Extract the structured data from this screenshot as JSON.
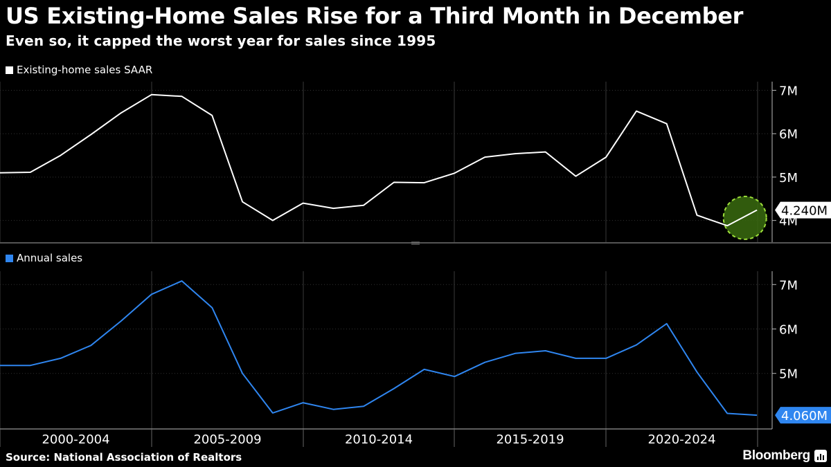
{
  "title": "US Existing-Home Sales Rise for a Third Month in December",
  "subtitle": "Even so, it capped the worst year for sales since 1995",
  "source": "Source: National Association of Realtors",
  "brand": "Bloomberg",
  "brand_icon": "bloomberg-chart-icon",
  "colors": {
    "background": "#000000",
    "series_top": "#ffffff",
    "series_bottom": "#2f86f0",
    "highlight": "#7cba2b",
    "grid": "#3a3a3a"
  },
  "chart_data": [
    {
      "type": "line",
      "legend": "Existing-home sales SAAR",
      "series": [
        {
          "name": "Existing-home sales SAAR",
          "x": [
            1999,
            2000,
            2001,
            2002,
            2003,
            2004,
            2005,
            2006,
            2007,
            2008,
            2009,
            2010,
            2011,
            2012,
            2013,
            2014,
            2015,
            2016,
            2017,
            2018,
            2019,
            2020,
            2021,
            2022,
            2023,
            2023.98
          ],
          "values": [
            5.1,
            5.11,
            5.5,
            5.98,
            6.48,
            6.9,
            6.86,
            6.42,
            4.43,
            4.0,
            4.4,
            4.28,
            4.35,
            4.88,
            4.87,
            5.09,
            5.46,
            5.54,
            5.58,
            5.02,
            5.46,
            6.52,
            6.23,
            4.12,
            3.88,
            4.24
          ]
        }
      ],
      "last_label": "4.240M",
      "highlight": "Dec 2023",
      "yticks": [
        "4M",
        "5M",
        "6M",
        "7M"
      ],
      "yticks_values": [
        4,
        5,
        6,
        7
      ],
      "ylim": [
        3.5,
        7.2
      ],
      "xlim": [
        1999,
        2024
      ]
    },
    {
      "type": "line",
      "legend": "Annual sales",
      "series": [
        {
          "name": "Annual sales",
          "x": [
            1999,
            2000,
            2001,
            2002,
            2003,
            2004,
            2005,
            2006,
            2007,
            2008,
            2009,
            2010,
            2011,
            2012,
            2013,
            2014,
            2015,
            2016,
            2017,
            2018,
            2019,
            2020,
            2021,
            2022,
            2023,
            2023.98
          ],
          "values": [
            5.18,
            5.18,
            5.34,
            5.63,
            6.18,
            6.78,
            7.08,
            6.48,
            5.0,
            4.11,
            4.34,
            4.19,
            4.26,
            4.66,
            5.09,
            4.93,
            5.25,
            5.45,
            5.51,
            5.34,
            5.34,
            5.64,
            6.12,
            5.03,
            4.1,
            4.06
          ]
        }
      ],
      "last_label": "4.060M",
      "yticks": [
        "5M",
        "6M",
        "7M"
      ],
      "yticks_values": [
        5,
        6,
        7
      ],
      "ylim": [
        3.75,
        7.3
      ],
      "xlim": [
        1999,
        2024
      ],
      "xticks": [
        "2000-2004",
        "2005-2009",
        "2010-2014",
        "2015-2019",
        "2020-2024"
      ]
    }
  ]
}
